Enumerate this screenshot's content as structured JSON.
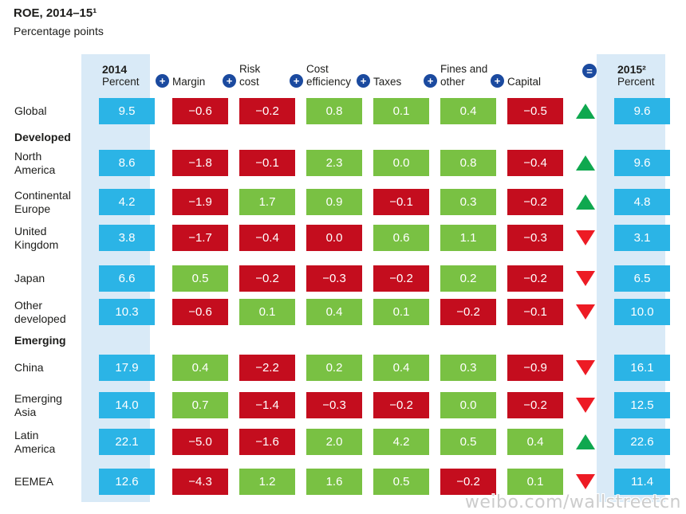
{
  "title": "ROE, 2014–15¹",
  "subtitle": "Percentage points",
  "watermark": "weibo.com/wallstreetcn",
  "header": {
    "col_2014_line1": "2014",
    "col_2014_line2": "Percent",
    "col_2015_line1": "2015²",
    "col_2015_line2": "Percent",
    "plus_symbol": "+",
    "equals_symbol": "=",
    "factors": [
      {
        "line1": "Margin",
        "line2": ""
      },
      {
        "line1": "Risk",
        "line2": "cost"
      },
      {
        "line1": "Cost",
        "line2": "efficiency"
      },
      {
        "line1": "Taxes",
        "line2": ""
      },
      {
        "line1": "Fines and",
        "line2": "other"
      },
      {
        "line1": "Capital",
        "line2": ""
      }
    ]
  },
  "colors": {
    "roe_cyan": "#2BB4E6",
    "negative_red": "#C40D1E",
    "positive_green": "#79C143",
    "band_blue": "#D9EAF7",
    "icon_blue": "#1B4A9F",
    "arrow_up_green": "#0FA84F",
    "arrow_down_red": "#ED1B24",
    "watermark_gray": "#CCCCCC",
    "text_dark": "#1D1D1B"
  },
  "chart_data": {
    "type": "table",
    "title": "ROE, 2014–15",
    "unit": "Percentage points",
    "start_column": "2014 Percent",
    "factor_columns": [
      "Margin",
      "Risk cost",
      "Cost efficiency",
      "Taxes",
      "Fines and other",
      "Capital"
    ],
    "end_column": "2015 Percent",
    "sections": [
      {
        "name": "",
        "rows": [
          {
            "label": "Global",
            "roe_2014": "9.5",
            "factors": [
              {
                "value": "−0.6",
                "color": "red"
              },
              {
                "value": "−0.2",
                "color": "red"
              },
              {
                "value": "0.8",
                "color": "green"
              },
              {
                "value": "0.1",
                "color": "green"
              },
              {
                "value": "0.4",
                "color": "green"
              },
              {
                "value": "−0.5",
                "color": "red"
              }
            ],
            "trend": "up",
            "roe_2015": "9.6"
          }
        ]
      },
      {
        "name": "Developed",
        "rows": [
          {
            "label": "North\nAmerica",
            "roe_2014": "8.6",
            "factors": [
              {
                "value": "−1.8",
                "color": "red"
              },
              {
                "value": "−0.1",
                "color": "red"
              },
              {
                "value": "2.3",
                "color": "green"
              },
              {
                "value": "0.0",
                "color": "green"
              },
              {
                "value": "0.8",
                "color": "green"
              },
              {
                "value": "−0.4",
                "color": "red"
              }
            ],
            "trend": "up",
            "roe_2015": "9.6"
          },
          {
            "label": "Continental\nEurope",
            "roe_2014": "4.2",
            "factors": [
              {
                "value": "−1.9",
                "color": "red"
              },
              {
                "value": "1.7",
                "color": "green"
              },
              {
                "value": "0.9",
                "color": "green"
              },
              {
                "value": "−0.1",
                "color": "red"
              },
              {
                "value": "0.3",
                "color": "green"
              },
              {
                "value": "−0.2",
                "color": "red"
              }
            ],
            "trend": "up",
            "roe_2015": "4.8"
          },
          {
            "label": "United\nKingdom",
            "roe_2014": "3.8",
            "factors": [
              {
                "value": "−1.7",
                "color": "red"
              },
              {
                "value": "−0.4",
                "color": "red"
              },
              {
                "value": "0.0",
                "color": "red"
              },
              {
                "value": "0.6",
                "color": "green"
              },
              {
                "value": "1.1",
                "color": "green"
              },
              {
                "value": "−0.3",
                "color": "red"
              }
            ],
            "trend": "down",
            "roe_2015": "3.1"
          },
          {
            "label": "Japan",
            "roe_2014": "6.6",
            "factors": [
              {
                "value": "0.5",
                "color": "green"
              },
              {
                "value": "−0.2",
                "color": "red"
              },
              {
                "value": "−0.3",
                "color": "red"
              },
              {
                "value": "−0.2",
                "color": "red"
              },
              {
                "value": "0.2",
                "color": "green"
              },
              {
                "value": "−0.2",
                "color": "red"
              }
            ],
            "trend": "down",
            "roe_2015": "6.5"
          },
          {
            "label": "Other\ndeveloped",
            "roe_2014": "10.3",
            "factors": [
              {
                "value": "−0.6",
                "color": "red"
              },
              {
                "value": "0.1",
                "color": "green"
              },
              {
                "value": "0.4",
                "color": "green"
              },
              {
                "value": "0.1",
                "color": "green"
              },
              {
                "value": "−0.2",
                "color": "red"
              },
              {
                "value": "−0.1",
                "color": "red"
              }
            ],
            "trend": "down",
            "roe_2015": "10.0"
          }
        ]
      },
      {
        "name": "Emerging",
        "rows": [
          {
            "label": "China",
            "roe_2014": "17.9",
            "factors": [
              {
                "value": "0.4",
                "color": "green"
              },
              {
                "value": "−2.2",
                "color": "red"
              },
              {
                "value": "0.2",
                "color": "green"
              },
              {
                "value": "0.4",
                "color": "green"
              },
              {
                "value": "0.3",
                "color": "green"
              },
              {
                "value": "−0.9",
                "color": "red"
              }
            ],
            "trend": "down",
            "roe_2015": "16.1"
          },
          {
            "label": "Emerging\nAsia",
            "roe_2014": "14.0",
            "factors": [
              {
                "value": "0.7",
                "color": "green"
              },
              {
                "value": "−1.4",
                "color": "red"
              },
              {
                "value": "−0.3",
                "color": "red"
              },
              {
                "value": "−0.2",
                "color": "red"
              },
              {
                "value": "0.0",
                "color": "green"
              },
              {
                "value": "−0.2",
                "color": "red"
              }
            ],
            "trend": "down",
            "roe_2015": "12.5"
          },
          {
            "label": "Latin\nAmerica",
            "roe_2014": "22.1",
            "factors": [
              {
                "value": "−5.0",
                "color": "red"
              },
              {
                "value": "−1.6",
                "color": "red"
              },
              {
                "value": "2.0",
                "color": "green"
              },
              {
                "value": "4.2",
                "color": "green"
              },
              {
                "value": "0.5",
                "color": "green"
              },
              {
                "value": "0.4",
                "color": "green"
              }
            ],
            "trend": "up",
            "roe_2015": "22.6"
          },
          {
            "label": "EEMEA",
            "roe_2014": "12.6",
            "factors": [
              {
                "value": "−4.3",
                "color": "red"
              },
              {
                "value": "1.2",
                "color": "green"
              },
              {
                "value": "1.6",
                "color": "green"
              },
              {
                "value": "0.5",
                "color": "green"
              },
              {
                "value": "−0.2",
                "color": "red"
              },
              {
                "value": "0.1",
                "color": "green"
              }
            ],
            "trend": "down",
            "roe_2015": "11.4"
          }
        ]
      }
    ]
  }
}
